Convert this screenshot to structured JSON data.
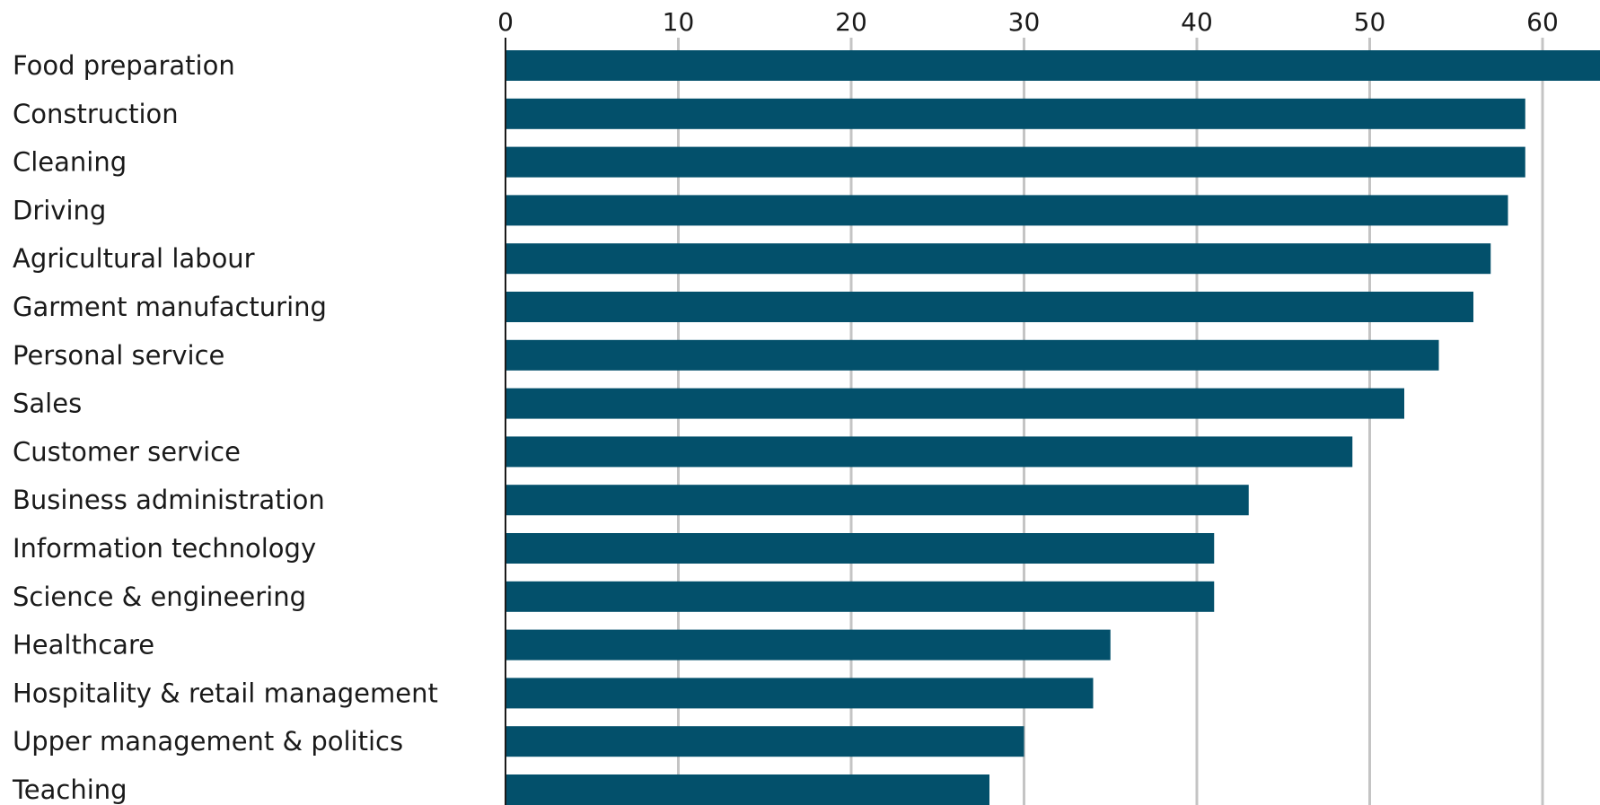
{
  "chart_data": {
    "type": "bar",
    "orientation": "horizontal",
    "title": "",
    "xlabel": "",
    "ylabel": "",
    "categories": [
      "Food preparation",
      "Construction",
      "Cleaning",
      "Driving",
      "Agricultural labour",
      "Garment manufacturing",
      "Personal service",
      "Sales",
      "Customer service",
      "Business administration",
      "Information technology",
      "Science & engineering",
      "Healthcare",
      "Hospitality & retail management",
      "Upper management & politics",
      "Teaching"
    ],
    "values": [
      63.5,
      59,
      59,
      58,
      57,
      56,
      54,
      52,
      49,
      43,
      41,
      41,
      35,
      34,
      30,
      28
    ],
    "xlim": [
      0,
      63.5
    ],
    "xticks": [
      0,
      10,
      20,
      30,
      40,
      50,
      60
    ],
    "xtick_labels": [
      "0",
      "10",
      "20",
      "30",
      "40",
      "50",
      "60"
    ],
    "x_axis_position": "top",
    "grid": "vertical",
    "legend": "none",
    "bar_color": "#03506b"
  }
}
